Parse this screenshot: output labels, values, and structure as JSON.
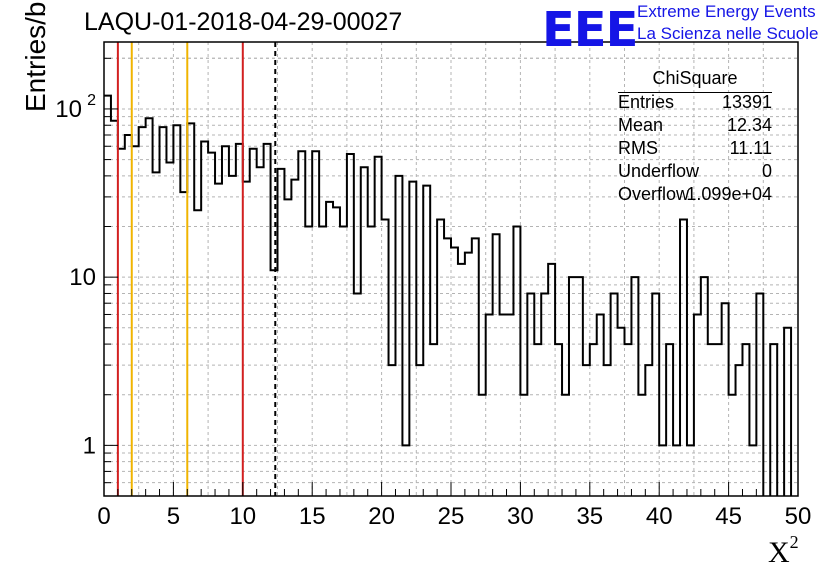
{
  "header": {
    "title": "LAQU-01-2018-04-29-00027",
    "logo": "EEE",
    "org_line1": "Extreme Energy Events",
    "org_line2": "La Scienza nelle Scuole",
    "logo_color": "#1515e6"
  },
  "stats": {
    "title": "ChiSquare",
    "rows": [
      {
        "key": "Entries",
        "value": "13391"
      },
      {
        "key": "Mean",
        "value": "12.34"
      },
      {
        "key": "RMS",
        "value": "11.11"
      },
      {
        "key": "Underflow",
        "value": "0"
      },
      {
        "key": "Overflow",
        "value": "1.099e+04"
      }
    ]
  },
  "chart_data": {
    "type": "histogram",
    "xlabel": "X",
    "xlabel_sup": "2",
    "ylabel": "Entries/bin",
    "xlim": [
      0,
      50
    ],
    "ylim": [
      0.5,
      250
    ],
    "yscale": "log",
    "grid": true,
    "bin_width": 0.5,
    "x_ticks": [
      "0",
      "5",
      "10",
      "15",
      "20",
      "25",
      "30",
      "35",
      "40",
      "45",
      "50"
    ],
    "y_ticks": [
      {
        "value": 1,
        "label": "1"
      },
      {
        "value": 10,
        "label": "10"
      },
      {
        "value": 100,
        "label": "10",
        "sup": "2"
      }
    ],
    "values": [
      120,
      85,
      58,
      70,
      60,
      78,
      88,
      42,
      78,
      48,
      80,
      32,
      82,
      25,
      64,
      55,
      36,
      60,
      40,
      62,
      37,
      58,
      45,
      62,
      11,
      44,
      29,
      38,
      56,
      20,
      56,
      20,
      28,
      26,
      20,
      54,
      8,
      45,
      20,
      52,
      22,
      3,
      40,
      1,
      37,
      3,
      35,
      4,
      22,
      17,
      15,
      12,
      14,
      17,
      2,
      6,
      18,
      6,
      6,
      20,
      2,
      8,
      4,
      8,
      12,
      4,
      2,
      10,
      10,
      3,
      4,
      6,
      3,
      8,
      5,
      4,
      10,
      2,
      3,
      8,
      1,
      4,
      1,
      22,
      1,
      6,
      10,
      4,
      4,
      7,
      2,
      3,
      4,
      1,
      8,
      0,
      4,
      0,
      5,
      0
    ],
    "reference_lines": [
      {
        "x": 1,
        "color": "#d22020",
        "style": "solid"
      },
      {
        "x": 2,
        "color": "#f0b400",
        "style": "solid"
      },
      {
        "x": 6,
        "color": "#f0b400",
        "style": "solid"
      },
      {
        "x": 10,
        "color": "#d22020",
        "style": "solid"
      },
      {
        "x": 12.34,
        "color": "#000000",
        "style": "dashed"
      }
    ]
  }
}
